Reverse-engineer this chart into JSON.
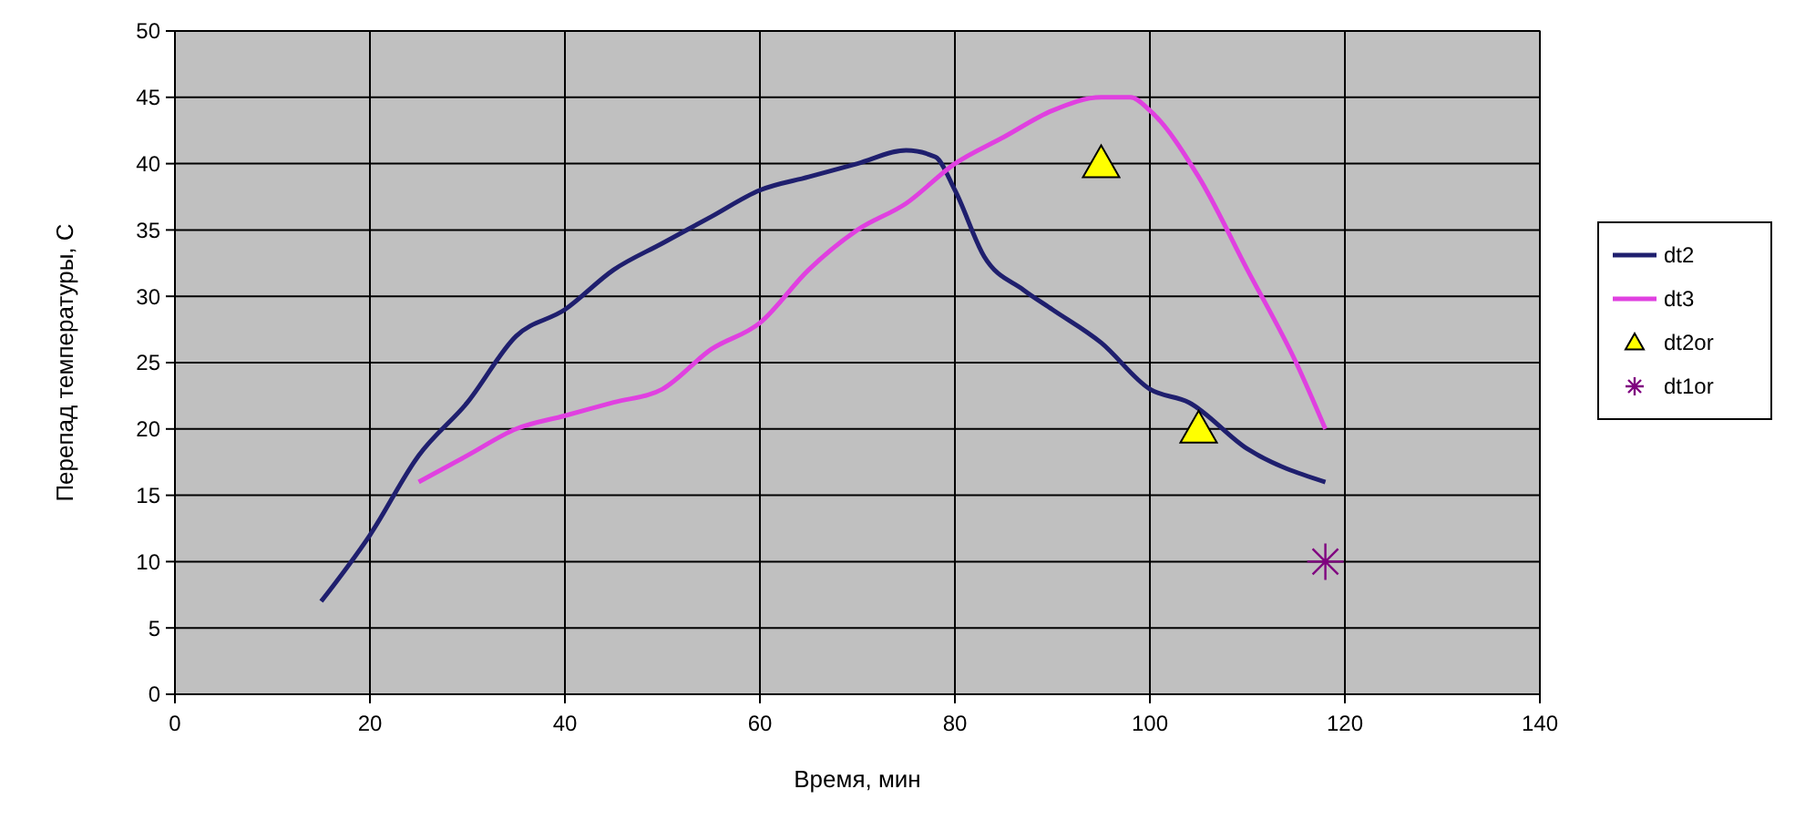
{
  "chart_data": {
    "type": "line",
    "xlabel": "Время, мин",
    "ylabel": "Перепад температуры, С",
    "xlim": [
      0,
      140
    ],
    "xticks": [
      0,
      20,
      40,
      60,
      80,
      100,
      120,
      140
    ],
    "ylim": [
      0,
      50
    ],
    "yticks": [
      0,
      5,
      10,
      15,
      20,
      25,
      30,
      35,
      40,
      45,
      50
    ],
    "grid": true,
    "legend": "right",
    "marker": "none",
    "series": [
      {
        "name": "dt2",
        "color": "#1f1f6e",
        "x": [
          15,
          20,
          25,
          30,
          35,
          40,
          45,
          50,
          55,
          60,
          65,
          70,
          75,
          78,
          80,
          83,
          87,
          90,
          95,
          100,
          104,
          110,
          118
        ],
        "values": [
          7,
          12,
          18,
          22,
          27,
          29,
          32,
          34,
          36,
          38,
          39,
          40,
          41,
          40.5,
          38,
          33,
          30.5,
          29,
          26.5,
          23,
          22,
          18.5,
          16
        ]
      },
      {
        "name": "dt3",
        "color": "#e040e0",
        "x": [
          25,
          30,
          35,
          40,
          45,
          50,
          55,
          60,
          65,
          70,
          75,
          80,
          85,
          90,
          95,
          98,
          100,
          105,
          110,
          115,
          118
        ],
        "values": [
          16,
          18,
          20,
          21,
          22,
          23,
          26,
          28,
          32,
          35,
          37,
          40,
          42,
          44,
          45,
          45,
          44,
          39,
          32,
          25,
          20
        ]
      },
      {
        "name": "dt2or",
        "type": "scatter",
        "marker": "triangle",
        "color": "#ffff00",
        "x": [
          95,
          105
        ],
        "values": [
          40,
          20
        ]
      },
      {
        "name": "dt1or",
        "type": "scatter",
        "marker": "cross",
        "color": "#800080",
        "x": [
          118
        ],
        "values": [
          10
        ]
      }
    ]
  }
}
